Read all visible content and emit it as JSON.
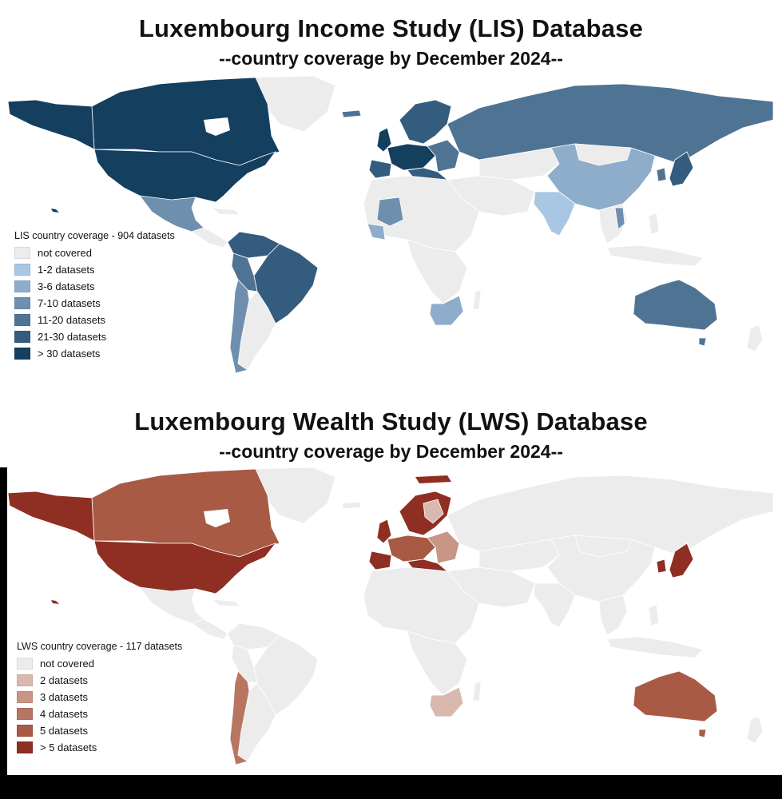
{
  "lis": {
    "title": "Luxembourg Income Study (LIS) Database",
    "subtitle": "--country coverage by December 2024--",
    "legend": {
      "title": "LIS country coverage - 904 datasets",
      "items": [
        {
          "label": "not covered",
          "color": "#ececec"
        },
        {
          "label": "1-2 datasets",
          "color": "#a9c7e3"
        },
        {
          "label": "3-6 datasets",
          "color": "#8eadcb"
        },
        {
          "label": "7-10 datasets",
          "color": "#6f8fae"
        },
        {
          "label": "11-20 datasets",
          "color": "#4f7393"
        },
        {
          "label": "21-30 datasets",
          "color": "#345c7e"
        },
        {
          "label": "> 30 datasets",
          "color": "#143f5f"
        }
      ]
    }
  },
  "lws": {
    "title": "Luxembourg Wealth Study (LWS) Database",
    "subtitle": "--country coverage by December 2024--",
    "legend": {
      "title": "LWS country coverage - 117 datasets",
      "items": [
        {
          "label": "not covered",
          "color": "#ececec"
        },
        {
          "label": "2 datasets",
          "color": "#d9b8ad"
        },
        {
          "label": "3 datasets",
          "color": "#c99585"
        },
        {
          "label": "4 datasets",
          "color": "#b87562"
        },
        {
          "label": "5 datasets",
          "color": "#a85a45"
        },
        {
          "label": "> 5 datasets",
          "color": "#8f2e22"
        }
      ]
    }
  }
}
